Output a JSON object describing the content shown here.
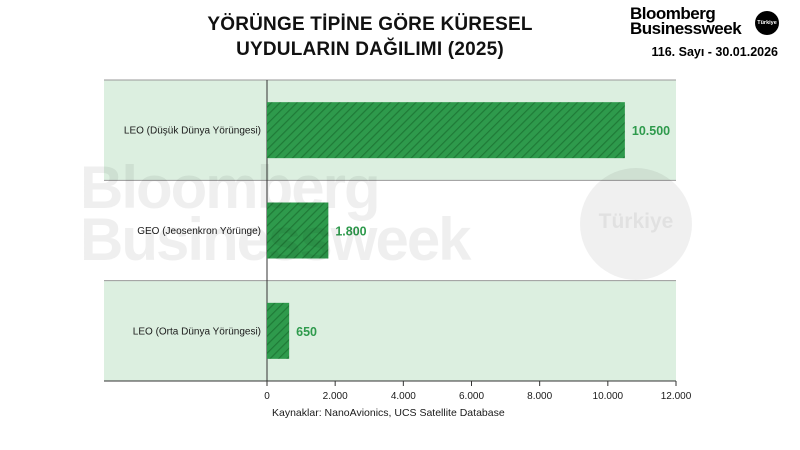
{
  "header": {
    "title_line1": "YÖRÜNGE TİPİNE GÖRE KÜRESEL",
    "title_line2": "UYDULARIN DAĞILIMI (2025)"
  },
  "brand": {
    "line1": "Bloomberg",
    "line2": "Businessweek",
    "badge": "Türkiye",
    "issue": "116. Sayı - 30.01.2026"
  },
  "watermark": {
    "line1": "Bloomberg",
    "line2": "Businessweek",
    "badge": "Türkiye"
  },
  "footer": {
    "source": "Kaynaklar: NanoAvionics, UCS Satellite Database"
  },
  "chart_data": {
    "type": "bar",
    "orientation": "horizontal",
    "title": "YÖRÜNGE TİPİNE GÖRE KÜRESEL UYDULARIN DAĞILIMI (2025)",
    "categories": [
      "LEO (Düşük Dünya Yörüngesi)",
      "GEO (Jeosenkron Yörünge)",
      "LEO (Orta Dünya Yörüngesi)"
    ],
    "values": [
      10500,
      1800,
      650
    ],
    "value_labels": [
      "10.500",
      "1.800",
      "650"
    ],
    "xlim": [
      0,
      12000
    ],
    "x_ticks": [
      0,
      2000,
      4000,
      6000,
      8000,
      10000,
      12000
    ],
    "x_tick_labels": [
      "0",
      "2.000",
      "4.000",
      "6.000",
      "8.000",
      "10.000",
      "12.000"
    ],
    "xlabel": "",
    "ylabel": "",
    "grid": false,
    "bar_color": "#2e9a4c",
    "bar_pattern": "diagonal-hatch",
    "band_colors": [
      "#dcefe0",
      "#ffffff",
      "#dcefe0"
    ],
    "value_label_color": "#2e9a4c"
  }
}
